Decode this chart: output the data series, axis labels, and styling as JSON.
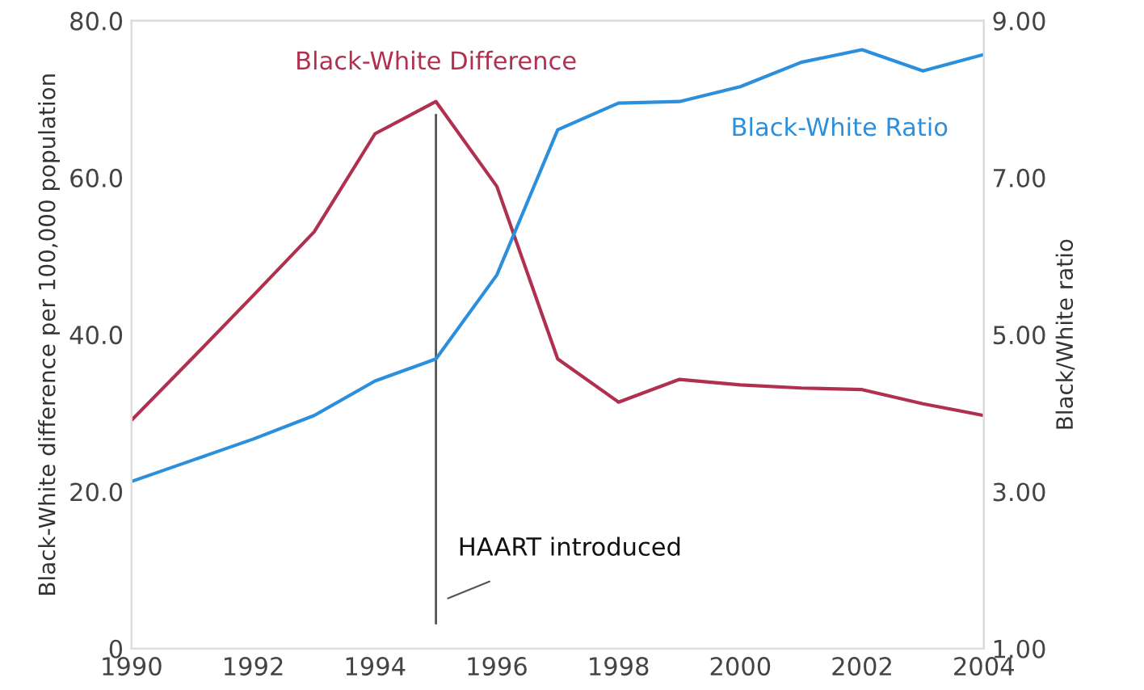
{
  "chart_data": {
    "type": "line",
    "x": [
      1990,
      1991,
      1992,
      1993,
      1994,
      1995,
      1996,
      1997,
      1998,
      1999,
      2000,
      2001,
      2002,
      2003,
      2004
    ],
    "series": [
      {
        "name": "Black-White Difference",
        "color": "#b0304f",
        "values": [
          29.1,
          37.0,
          45.0,
          53.1,
          65.6,
          69.7,
          58.9,
          36.9,
          31.4,
          34.3,
          33.6,
          33.2,
          33.0,
          31.2,
          29.7
        ]
      },
      {
        "name": "Black-White Ratio",
        "color": "#2b8fdc",
        "axis": "y2",
        "values": [
          3.13,
          3.4,
          3.67,
          3.97,
          4.41,
          4.69,
          5.76,
          7.61,
          7.95,
          7.97,
          8.16,
          8.47,
          8.63,
          8.36,
          8.57
        ]
      }
    ],
    "ylabel": "Black-White difference per 100,000 population",
    "y2label": "Black/White ratio",
    "xlim": [
      1990,
      2004
    ],
    "xticks": [
      1990,
      1992,
      1994,
      1996,
      1998,
      2000,
      2002,
      2004
    ],
    "ylim": [
      0,
      80
    ],
    "yticks": [
      0,
      {
        "value": 20,
        "label": "20.0"
      },
      {
        "value": 40,
        "label": "40.0"
      },
      {
        "value": 60,
        "label": "60.0"
      },
      {
        "value": 80,
        "label": "80.0"
      }
    ],
    "y2lim": [
      1,
      9
    ],
    "y2ticks": [
      {
        "value": 1,
        "label": "1.00"
      },
      {
        "value": 3,
        "label": "3.00"
      },
      {
        "value": 5,
        "label": "5.00"
      },
      {
        "value": 7,
        "label": "7.00"
      },
      {
        "value": 9,
        "label": "9.00"
      }
    ],
    "ref_lines": [
      {
        "axis": "x",
        "value": 1995,
        "label": "HAART introduced",
        "color": "#555555"
      }
    ],
    "grid": false,
    "legend": false
  }
}
